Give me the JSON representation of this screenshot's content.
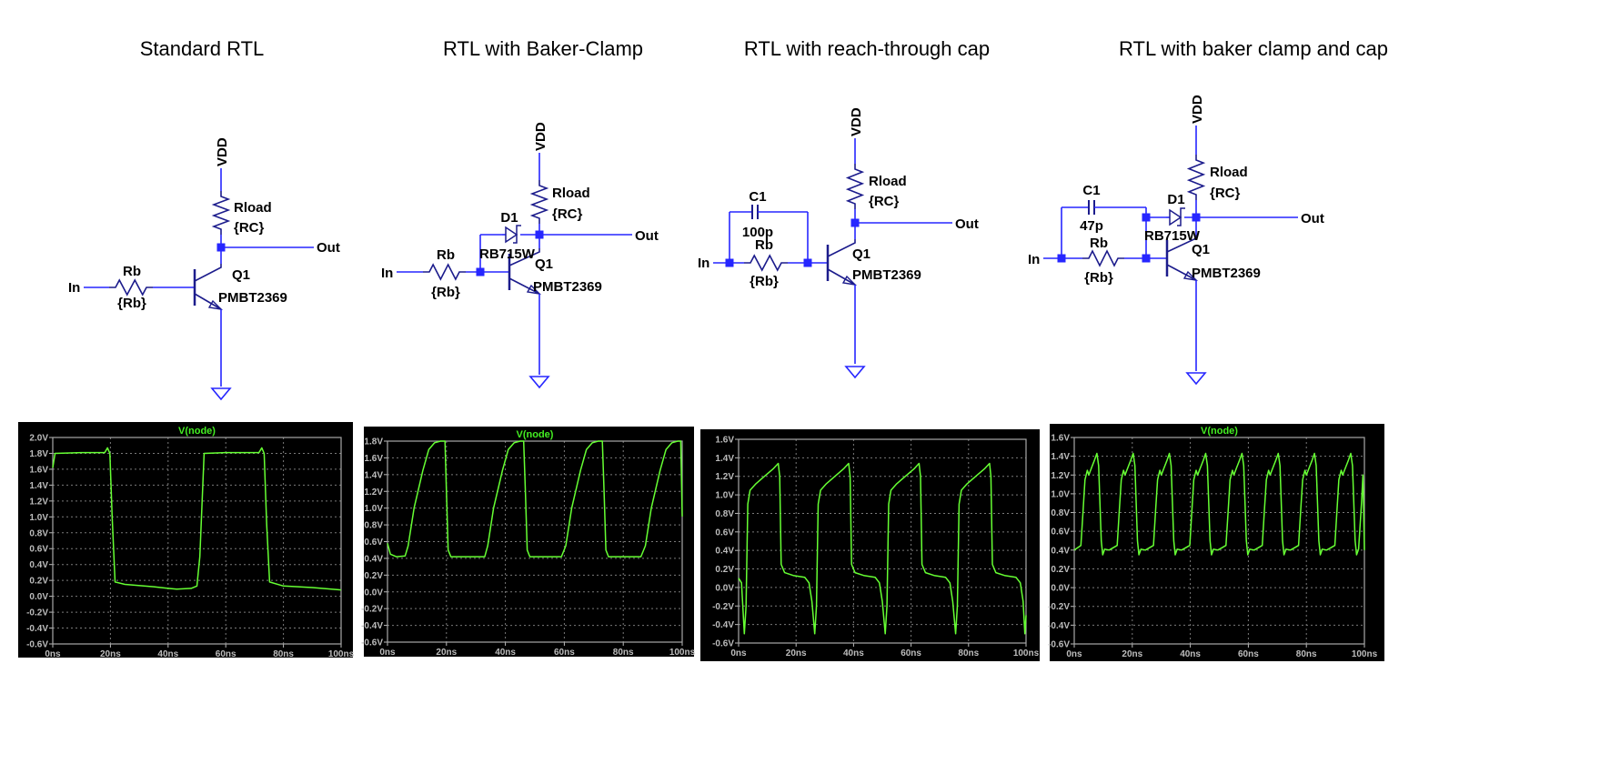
{
  "circuits": [
    {
      "title": "Standard RTL",
      "vdd": "VDD",
      "rload": "Rload",
      "rload_value": "{RC}",
      "out": "Out",
      "in": "In",
      "rb": "Rb",
      "rb_value": "{Rb}",
      "q": "Q1",
      "q_model": "PMBT2369"
    },
    {
      "title": "RTL with Baker-Clamp",
      "vdd": "VDD",
      "rload": "Rload",
      "rload_value": "{RC}",
      "out": "Out",
      "in": "In",
      "rb": "Rb",
      "rb_value": "{Rb}",
      "q": "Q1",
      "q_model": "PMBT2369",
      "d": "D1",
      "d_model": "RB715W"
    },
    {
      "title": "RTL with reach-through cap",
      "vdd": "VDD",
      "rload": "Rload",
      "rload_value": "{RC}",
      "out": "Out",
      "in": "In",
      "rb": "Rb",
      "rb_value": "{Rb}",
      "q": "Q1",
      "q_model": "PMBT2369",
      "c": "C1",
      "c_value": "100p"
    },
    {
      "title": "RTL with baker clamp and cap",
      "vdd": "VDD",
      "rload": "Rload",
      "rload_value": "{RC}",
      "out": "Out",
      "in": "In",
      "rb": "Rb",
      "rb_value": "{Rb}",
      "q": "Q1",
      "q_model": "PMBT2369",
      "d": "D1",
      "d_model": "RB715W",
      "c": "C1",
      "c_value": "47p"
    }
  ],
  "colors": {
    "wire": "#2626ff",
    "component": "#1c1c8c",
    "plot_bg": "#000000",
    "trace": "#66ff33",
    "plot_title": "#44ee22",
    "tick": "#bdbdbd",
    "grid": "#7a7a7a"
  },
  "chart_data": [
    {
      "type": "line",
      "title": "V(node)",
      "xlim": [
        0,
        100
      ],
      "ylim": [
        -0.6,
        2.0
      ],
      "grid": true,
      "x_ticks": [
        "0ns",
        "20ns",
        "40ns",
        "60ns",
        "80ns",
        "100ns"
      ],
      "y_ticks": [
        "2.0V",
        "1.8V",
        "1.6V",
        "1.4V",
        "1.2V",
        "1.0V",
        "0.8V",
        "0.6V",
        "0.4V",
        "0.2V",
        "0.0V",
        "-0.2V",
        "-0.4V",
        "-0.6V"
      ],
      "series": [
        {
          "points": [
            [
              0,
              1.62
            ],
            [
              0.8,
              1.8
            ],
            [
              10,
              1.81
            ],
            [
              18,
              1.81
            ],
            [
              19,
              1.87
            ],
            [
              19.8,
              1.8
            ],
            [
              20.6,
              1.0
            ],
            [
              21.6,
              0.18
            ],
            [
              25,
              0.15
            ],
            [
              35,
              0.12
            ],
            [
              40,
              0.1
            ],
            [
              43,
              0.09
            ],
            [
              48,
              0.1
            ],
            [
              50,
              0.13
            ],
            [
              51,
              0.5
            ],
            [
              52.5,
              1.8
            ],
            [
              60,
              1.81
            ],
            [
              71.5,
              1.81
            ],
            [
              72.5,
              1.87
            ],
            [
              73.3,
              1.8
            ],
            [
              74.2,
              0.9
            ],
            [
              75.2,
              0.18
            ],
            [
              80,
              0.13
            ],
            [
              90,
              0.11
            ],
            [
              100,
              0.08
            ]
          ]
        }
      ]
    },
    {
      "type": "line",
      "title": "V(node)",
      "xlim": [
        0,
        100
      ],
      "ylim": [
        -0.6,
        1.8
      ],
      "grid": true,
      "x_ticks": [
        "0ns",
        "20ns",
        "40ns",
        "60ns",
        "80ns",
        "100ns"
      ],
      "y_ticks": [
        "1.8V",
        "1.6V",
        "1.4V",
        "1.2V",
        "1.0V",
        "0.8V",
        "0.6V",
        "0.4V",
        "0.2V",
        "0.0V",
        "-0.2V",
        "-0.4V",
        "-0.6V"
      ],
      "series": [
        {
          "points": [
            [
              0,
              0.58
            ],
            [
              1,
              0.45
            ],
            [
              3,
              0.42
            ],
            [
              6,
              0.43
            ],
            [
              7,
              0.55
            ],
            [
              9,
              1.0
            ],
            [
              12,
              1.45
            ],
            [
              14,
              1.7
            ],
            [
              16,
              1.78
            ],
            [
              18,
              1.8
            ],
            [
              19.5,
              1.8
            ],
            [
              20,
              1.2
            ],
            [
              20.6,
              0.5
            ],
            [
              21.5,
              0.42
            ],
            [
              33,
              0.42
            ],
            [
              34,
              0.55
            ],
            [
              36,
              1.0
            ],
            [
              39,
              1.45
            ],
            [
              41,
              1.7
            ],
            [
              43,
              1.78
            ],
            [
              45,
              1.8
            ],
            [
              46.2,
              1.8
            ],
            [
              46.8,
              1.2
            ],
            [
              47.4,
              0.5
            ],
            [
              48.3,
              0.42
            ],
            [
              59,
              0.42
            ],
            [
              60.5,
              0.55
            ],
            [
              62.5,
              1.0
            ],
            [
              65.5,
              1.45
            ],
            [
              67.5,
              1.7
            ],
            [
              69.5,
              1.78
            ],
            [
              71.5,
              1.8
            ],
            [
              72.9,
              1.8
            ],
            [
              73.5,
              1.2
            ],
            [
              74.1,
              0.5
            ],
            [
              75,
              0.42
            ],
            [
              86,
              0.42
            ],
            [
              87.5,
              0.55
            ],
            [
              89.5,
              1.0
            ],
            [
              92.5,
              1.45
            ],
            [
              94.5,
              1.7
            ],
            [
              96.5,
              1.78
            ],
            [
              98.5,
              1.8
            ],
            [
              99.5,
              1.8
            ],
            [
              100,
              0.9
            ]
          ]
        }
      ]
    },
    {
      "type": "line",
      "title": "",
      "xlim": [
        0,
        100
      ],
      "ylim": [
        -0.6,
        1.6
      ],
      "grid": true,
      "x_ticks": [
        "0ns",
        "20ns",
        "40ns",
        "60ns",
        "80ns",
        "100ns"
      ],
      "y_ticks": [
        "1.6V",
        "1.4V",
        "1.2V",
        "1.0V",
        "0.8V",
        "0.6V",
        "0.4V",
        "0.2V",
        "0.0V",
        "-0.2V",
        "-0.4V",
        "-0.6V"
      ],
      "series": [
        {
          "points": [
            [
              0,
              0.1
            ],
            [
              1,
              0.05
            ],
            [
              2,
              -0.5
            ],
            [
              2.6,
              -0.2
            ],
            [
              3.2,
              0.9
            ],
            [
              4,
              1.05
            ],
            [
              6,
              1.12
            ],
            [
              9,
              1.2
            ],
            [
              12,
              1.28
            ],
            [
              13.8,
              1.34
            ],
            [
              14.3,
              1.2
            ],
            [
              14.8,
              0.25
            ],
            [
              16,
              0.16
            ],
            [
              19,
              0.13
            ],
            [
              23,
              0.11
            ],
            [
              24.5,
              0.05
            ],
            [
              25.5,
              -0.15
            ],
            [
              26.5,
              -0.5
            ],
            [
              27.1,
              -0.2
            ],
            [
              27.7,
              0.9
            ],
            [
              28.5,
              1.05
            ],
            [
              30.5,
              1.12
            ],
            [
              33.5,
              1.2
            ],
            [
              36.5,
              1.28
            ],
            [
              38.3,
              1.34
            ],
            [
              38.8,
              1.2
            ],
            [
              39.3,
              0.25
            ],
            [
              40.5,
              0.16
            ],
            [
              43.5,
              0.13
            ],
            [
              47.5,
              0.11
            ],
            [
              49,
              0.05
            ],
            [
              50,
              -0.15
            ],
            [
              51,
              -0.5
            ],
            [
              51.6,
              -0.2
            ],
            [
              52.2,
              0.9
            ],
            [
              53,
              1.05
            ],
            [
              55,
              1.12
            ],
            [
              58,
              1.2
            ],
            [
              61,
              1.28
            ],
            [
              62.8,
              1.34
            ],
            [
              63.3,
              1.2
            ],
            [
              63.8,
              0.25
            ],
            [
              65,
              0.16
            ],
            [
              68,
              0.13
            ],
            [
              72,
              0.11
            ],
            [
              73.5,
              0.05
            ],
            [
              74.5,
              -0.15
            ],
            [
              75.5,
              -0.5
            ],
            [
              76.1,
              -0.2
            ],
            [
              76.7,
              0.9
            ],
            [
              77.5,
              1.05
            ],
            [
              79.5,
              1.12
            ],
            [
              82.5,
              1.2
            ],
            [
              85.5,
              1.28
            ],
            [
              87.3,
              1.34
            ],
            [
              87.8,
              1.2
            ],
            [
              88.3,
              0.25
            ],
            [
              89.5,
              0.16
            ],
            [
              92.5,
              0.13
            ],
            [
              96.5,
              0.11
            ],
            [
              98,
              0.05
            ],
            [
              99,
              -0.15
            ],
            [
              99.6,
              -0.5
            ],
            [
              100,
              -0.3
            ]
          ]
        }
      ]
    },
    {
      "type": "line",
      "title": "V(node)",
      "xlim": [
        0,
        100
      ],
      "ylim": [
        -0.6,
        1.6
      ],
      "grid": true,
      "x_ticks": [
        "0ns",
        "20ns",
        "40ns",
        "60ns",
        "80ns",
        "100ns"
      ],
      "y_ticks": [
        "1.6V",
        "1.4V",
        "1.2V",
        "1.0V",
        "0.8V",
        "0.6V",
        "0.4V",
        "0.2V",
        "0.0V",
        "-0.2V",
        "-0.4V",
        "-0.6V"
      ],
      "series": [
        {
          "points": [
            [
              0,
              0.4
            ],
            [
              2.3,
              0.45
            ],
            [
              3,
              0.8
            ],
            [
              3.7,
              1.15
            ],
            [
              4.5,
              1.25
            ],
            [
              5,
              1.2
            ],
            [
              6,
              1.28
            ],
            [
              7,
              1.36
            ],
            [
              7.8,
              1.43
            ],
            [
              8.4,
              1.3
            ],
            [
              9.3,
              0.5
            ],
            [
              9.8,
              0.35
            ],
            [
              10.5,
              0.41
            ],
            [
              12,
              0.4
            ],
            [
              14.8,
              0.45
            ],
            [
              15.5,
              0.8
            ],
            [
              16.2,
              1.15
            ],
            [
              17,
              1.25
            ],
            [
              17.5,
              1.2
            ],
            [
              18.5,
              1.28
            ],
            [
              19.5,
              1.36
            ],
            [
              20.3,
              1.43
            ],
            [
              20.9,
              1.3
            ],
            [
              21.8,
              0.5
            ],
            [
              22.3,
              0.35
            ],
            [
              23,
              0.41
            ],
            [
              24.5,
              0.4
            ],
            [
              27.3,
              0.45
            ],
            [
              28,
              0.8
            ],
            [
              28.7,
              1.15
            ],
            [
              29.5,
              1.25
            ],
            [
              30,
              1.2
            ],
            [
              31,
              1.28
            ],
            [
              32,
              1.36
            ],
            [
              32.8,
              1.43
            ],
            [
              33.4,
              1.3
            ],
            [
              34.3,
              0.5
            ],
            [
              34.8,
              0.35
            ],
            [
              35.5,
              0.41
            ],
            [
              37,
              0.4
            ],
            [
              39.8,
              0.45
            ],
            [
              40.5,
              0.8
            ],
            [
              41.2,
              1.15
            ],
            [
              42,
              1.25
            ],
            [
              42.5,
              1.2
            ],
            [
              43.5,
              1.28
            ],
            [
              44.5,
              1.36
            ],
            [
              45.3,
              1.43
            ],
            [
              45.9,
              1.3
            ],
            [
              46.8,
              0.5
            ],
            [
              47.3,
              0.35
            ],
            [
              48,
              0.41
            ],
            [
              49.5,
              0.4
            ],
            [
              52.3,
              0.45
            ],
            [
              53,
              0.8
            ],
            [
              53.7,
              1.15
            ],
            [
              54.5,
              1.25
            ],
            [
              55,
              1.2
            ],
            [
              56,
              1.28
            ],
            [
              57,
              1.36
            ],
            [
              57.8,
              1.43
            ],
            [
              58.4,
              1.3
            ],
            [
              59.3,
              0.5
            ],
            [
              59.8,
              0.35
            ],
            [
              60.5,
              0.41
            ],
            [
              62,
              0.4
            ],
            [
              64.8,
              0.45
            ],
            [
              65.5,
              0.8
            ],
            [
              66.2,
              1.15
            ],
            [
              67,
              1.25
            ],
            [
              67.5,
              1.2
            ],
            [
              68.5,
              1.28
            ],
            [
              69.5,
              1.36
            ],
            [
              70.3,
              1.43
            ],
            [
              70.9,
              1.3
            ],
            [
              71.8,
              0.5
            ],
            [
              72.3,
              0.35
            ],
            [
              73,
              0.41
            ],
            [
              74.5,
              0.4
            ],
            [
              77.3,
              0.45
            ],
            [
              78,
              0.8
            ],
            [
              78.7,
              1.15
            ],
            [
              79.5,
              1.25
            ],
            [
              80,
              1.2
            ],
            [
              81,
              1.28
            ],
            [
              82,
              1.36
            ],
            [
              82.8,
              1.43
            ],
            [
              83.4,
              1.3
            ],
            [
              84.3,
              0.5
            ],
            [
              84.8,
              0.35
            ],
            [
              85.5,
              0.41
            ],
            [
              87,
              0.4
            ],
            [
              89.8,
              0.45
            ],
            [
              90.5,
              0.8
            ],
            [
              91.2,
              1.15
            ],
            [
              92,
              1.25
            ],
            [
              92.5,
              1.2
            ],
            [
              93.5,
              1.28
            ],
            [
              94.5,
              1.36
            ],
            [
              95.3,
              1.43
            ],
            [
              95.9,
              1.3
            ],
            [
              96.8,
              0.5
            ],
            [
              97.3,
              0.35
            ],
            [
              98,
              0.41
            ],
            [
              99,
              0.9
            ],
            [
              99.5,
              1.2
            ],
            [
              100,
              0.4
            ]
          ]
        }
      ]
    }
  ]
}
